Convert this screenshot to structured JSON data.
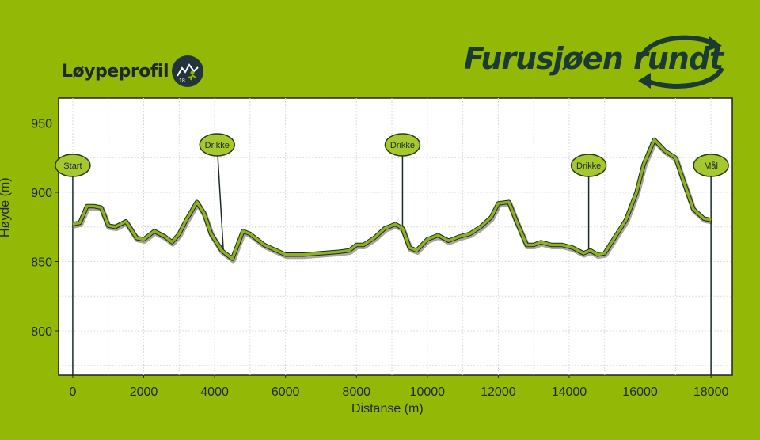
{
  "header": {
    "title": "Løypeprofil",
    "badge_text": "18",
    "brand_word1": "Furusjøen",
    "brand_word2": "rundt"
  },
  "colors": {
    "background": "#93b906",
    "plot_bg": "#ffffff",
    "profile_line": "#8eb121",
    "label_fill": "#a5c82d"
  },
  "chart_data": {
    "type": "line",
    "xlabel": "Distanse (m)",
    "ylabel": "Høyde (m)",
    "xlim": [
      -400,
      18600
    ],
    "ylim": [
      768,
      968
    ],
    "xticks": [
      0,
      2000,
      4000,
      6000,
      8000,
      10000,
      12000,
      14000,
      16000,
      18000
    ],
    "yticks": [
      800,
      850,
      900,
      950
    ],
    "grid": true,
    "series": [
      {
        "x": [
          0,
          200,
          400,
          600,
          800,
          1000,
          1200,
          1500,
          1800,
          2000,
          2300,
          2600,
          2800,
          3000,
          3200,
          3500,
          3700,
          3900,
          4200,
          4500,
          4800,
          5000,
          5400,
          6000,
          6500,
          7000,
          7500,
          7800,
          8000,
          8200,
          8500,
          8800,
          9100,
          9300,
          9500,
          9700,
          10000,
          10300,
          10600,
          10900,
          11200,
          11500,
          11800,
          12000,
          12300,
          12500,
          12800,
          13000,
          13200,
          13500,
          13800,
          14100,
          14400,
          14600,
          14800,
          15000,
          15300,
          15600,
          15900,
          16100,
          16400,
          16700,
          17000,
          17200,
          17500,
          17800,
          18000
        ],
        "y": [
          877,
          878,
          890,
          890,
          889,
          876,
          875,
          879,
          867,
          866,
          872,
          868,
          864,
          870,
          880,
          893,
          885,
          870,
          858,
          852,
          872,
          870,
          862,
          855,
          855,
          856,
          857,
          858,
          862,
          862,
          867,
          874,
          877,
          874,
          860,
          858,
          866,
          869,
          865,
          868,
          870,
          875,
          882,
          892,
          893,
          880,
          862,
          862,
          864,
          862,
          862,
          860,
          856,
          858,
          855,
          856,
          868,
          880,
          900,
          920,
          938,
          930,
          925,
          910,
          888,
          881,
          880
        ]
      }
    ],
    "markers": [
      {
        "label": "Start",
        "x": 0
      },
      {
        "label": "Drikke",
        "x": 4250
      },
      {
        "label": "Drikke",
        "x": 9300
      },
      {
        "label": "Drikke",
        "x": 14550
      },
      {
        "label": "Mål",
        "x": 18000
      }
    ]
  }
}
